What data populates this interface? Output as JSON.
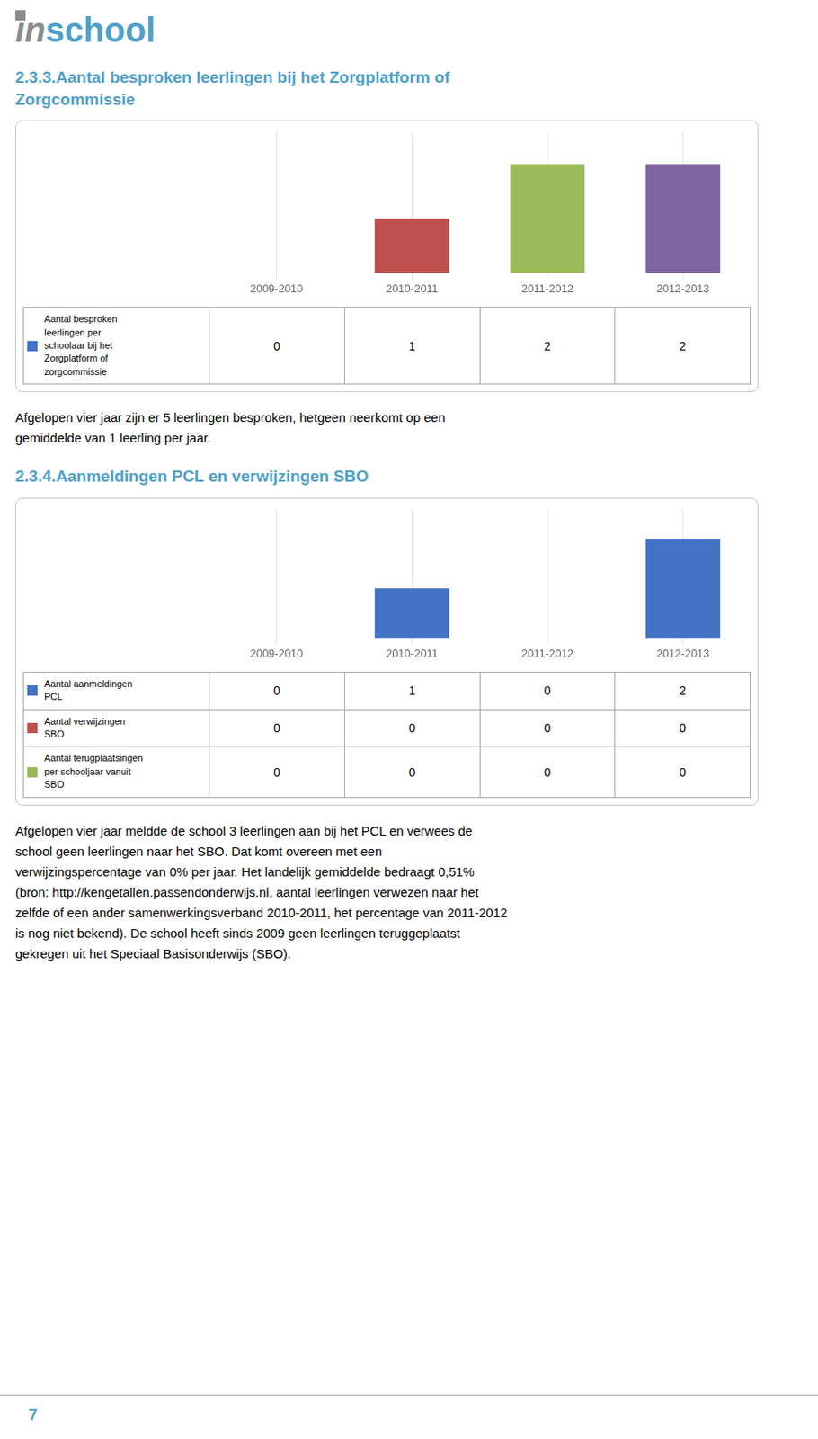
{
  "logo": [
    {
      "text": "in",
      "color": "#8c8c8c"
    },
    {
      "text": "school",
      "color": "#4fa0c8"
    }
  ],
  "page_number": "7",
  "chart_data": [
    {
      "type": "bar",
      "title": "2.3.3.Aantal besproken leerlingen bij het Zorgplatform of\nZorgcommissie",
      "categories": [
        "2009-2010",
        "2010-2011",
        "2011-2012",
        "2012-2013"
      ],
      "series": [
        {
          "name": "Aantal besproken\nleerlingen per\nschoolaar bij het\nZorgplatform of\nzorgcommissie",
          "color": "#4472c4",
          "colors": [
            "#bfbfbf",
            "#c0504d",
            "#9bbb59",
            "#8064a2"
          ],
          "values": [
            0,
            1,
            2,
            2
          ]
        }
      ],
      "ylim": [
        0,
        2.6
      ],
      "grid": true,
      "tick_labels": "x",
      "annotations": [
        "Afgelopen vier jaar zijn er 5 leerlingen besproken, hetgeen neerkomt op een\ngemiddelde van 1 leerling per jaar."
      ]
    },
    {
      "type": "bar",
      "title": "2.3.4.Aanmeldingen PCL en verwijzingen SBO",
      "categories": [
        "2009-2010",
        "2010-2011",
        "2011-2012",
        "2012-2013"
      ],
      "series": [
        {
          "name": "Aantal aanmeldingen\nPCL",
          "color": "#4472c4",
          "values": [
            0,
            1,
            0,
            2
          ]
        },
        {
          "name": "Aantal verwijzingen\nSBO",
          "color": "#c0504d",
          "values": [
            0,
            0,
            0,
            0
          ]
        },
        {
          "name": "Aantal terugplaatsingen\nper schooljaar vanuit\nSBO",
          "color": "#9bbb59",
          "values": [
            0,
            0,
            0,
            0
          ]
        }
      ],
      "ylim": [
        0,
        2.6
      ],
      "grid": true,
      "tick_labels": "x",
      "annotations": [
        "Afgelopen vier jaar meldde de school 3 leerlingen aan bij het PCL en verwees de\nschool geen leerlingen naar het SBO. Dat komt overeen met een\nverwijzingspercentage van 0% per jaar. Het landelijk gemiddelde bedraagt 0,51%\n(bron: http://kengetallen.passendonderwijs.nl, aantal leerlingen verwezen naar het\nzelfde of een ander samenwerkingsverband 2010-2011, het percentage van 2011-2012\nis nog niet bekend). De school heeft sinds 2009 geen leerlingen teruggeplaatst\ngekregen uit het Speciaal Basisonderwijs (SBO)."
      ]
    }
  ]
}
